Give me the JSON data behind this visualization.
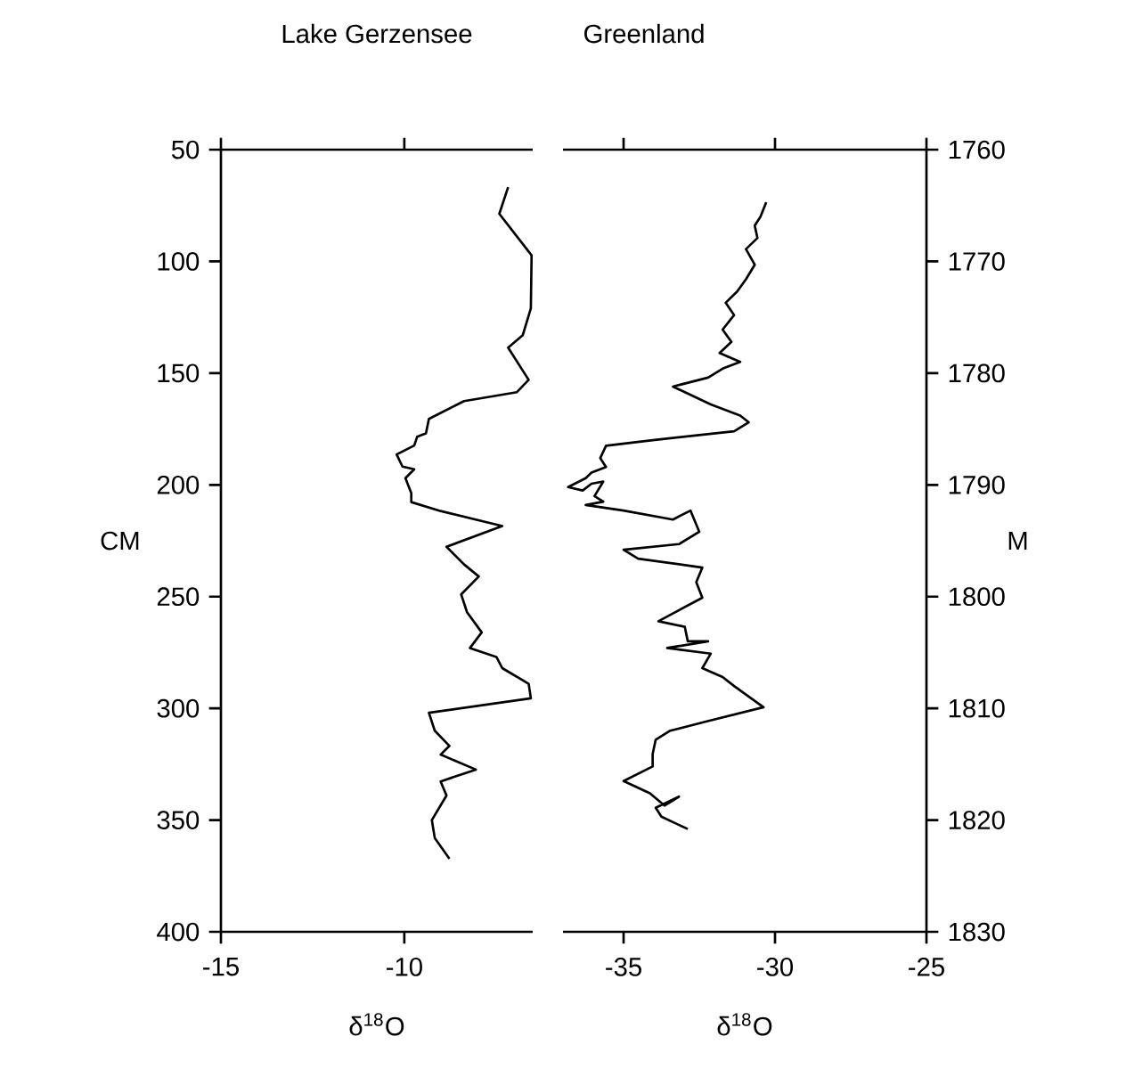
{
  "chart_data": [
    {
      "type": "line",
      "title": "Lake Gerzensee",
      "xlabel": "δ$^{18}$O",
      "ylabel": "CM",
      "color": "#000000",
      "xlim": [
        -15,
        -6.5
      ],
      "xticks": [
        -15,
        -10
      ],
      "ylim": [
        400,
        50
      ],
      "yticks": [
        50,
        100,
        150,
        200,
        250,
        300,
        350,
        400
      ],
      "x": [
        -7.17,
        -7.41,
        -6.53,
        -6.55,
        -6.77,
        -7.17,
        -6.61,
        -6.93,
        -8.37,
        -9.33,
        -9.41,
        -9.65,
        -9.73,
        -10.21,
        -10.05,
        -9.73,
        -9.97,
        -9.81,
        -9.81,
        -9.01,
        -7.33,
        -8.85,
        -8.37,
        -7.97,
        -8.45,
        -8.29,
        -7.89,
        -8.21,
        -7.49,
        -7.33,
        -6.61,
        -6.55,
        -9.33,
        -9.17,
        -8.77,
        -9.01,
        -8.05,
        -9.01,
        -8.85,
        -9.25,
        -9.17,
        -8.77
      ],
      "values": [
        66.8,
        78.7,
        97.3,
        121,
        133,
        138.6,
        153,
        158.5,
        162.5,
        170.5,
        177,
        178.5,
        182.4,
        186.4,
        191.8,
        193,
        197,
        203.7,
        207.7,
        211.7,
        218.4,
        227.7,
        235.6,
        241,
        249,
        257,
        266,
        273,
        277,
        282,
        289,
        295.5,
        302,
        310,
        316.8,
        320.7,
        327.4,
        332.7,
        339,
        350,
        358,
        367.3
      ]
    },
    {
      "type": "line",
      "title": "Greenland",
      "xlabel": "δ$^{18}$O",
      "ylabel": "M",
      "color": "#000000",
      "xlim": [
        -37,
        -25
      ],
      "xticks": [
        -35,
        -30,
        -25
      ],
      "ylim": [
        1830,
        1760
      ],
      "yticks": [
        1760,
        1770,
        1780,
        1790,
        1800,
        1810,
        1820,
        1830
      ],
      "x": [
        -30.29,
        -30.48,
        -30.67,
        -30.58,
        -30.96,
        -30.67,
        -30.96,
        -31.25,
        -31.63,
        -31.35,
        -31.73,
        -31.44,
        -31.83,
        -31.15,
        -31.73,
        -32.21,
        -33.37,
        -32.12,
        -31.15,
        -30.87,
        -31.35,
        -34.04,
        -35.58,
        -35.77,
        -35.58,
        -36.06,
        -36.25,
        -36.83,
        -36.35,
        -36.06,
        -35.67,
        -35.96,
        -35.67,
        -36.25,
        -35.0,
        -33.37,
        -32.79,
        -32.5,
        -33.17,
        -35.0,
        -34.52,
        -32.4,
        -32.6,
        -32.4,
        -33.85,
        -32.98,
        -32.88,
        -32.21,
        -33.56,
        -32.12,
        -32.4,
        -31.73,
        -31.35,
        -30.38,
        -32.31,
        -33.46,
        -33.94,
        -34.04,
        -34.04,
        -35.0,
        -34.13,
        -33.65,
        -33.17,
        -33.94,
        -33.75,
        -32.88
      ],
      "values": [
        1764.7,
        1766.0,
        1766.8,
        1767.9,
        1768.9,
        1770.3,
        1771.6,
        1772.7,
        1773.7,
        1774.8,
        1776.1,
        1777.2,
        1778.2,
        1779.0,
        1779.6,
        1780.4,
        1781.2,
        1782.8,
        1783.8,
        1784.4,
        1785.2,
        1786.0,
        1786.5,
        1787.6,
        1788.4,
        1788.9,
        1789.4,
        1790.2,
        1790.5,
        1789.9,
        1789.7,
        1791.0,
        1791.5,
        1791.8,
        1792.3,
        1793.1,
        1792.3,
        1794.2,
        1795.3,
        1795.8,
        1796.6,
        1797.4,
        1798.7,
        1800.1,
        1802.2,
        1802.7,
        1804.0,
        1804.0,
        1804.6,
        1805.1,
        1806.4,
        1807.2,
        1808.0,
        1809.9,
        1811.2,
        1812.0,
        1812.8,
        1814.1,
        1815.2,
        1816.5,
        1817.6,
        1818.7,
        1817.9,
        1818.9,
        1819.7,
        1820.8
      ]
    }
  ]
}
